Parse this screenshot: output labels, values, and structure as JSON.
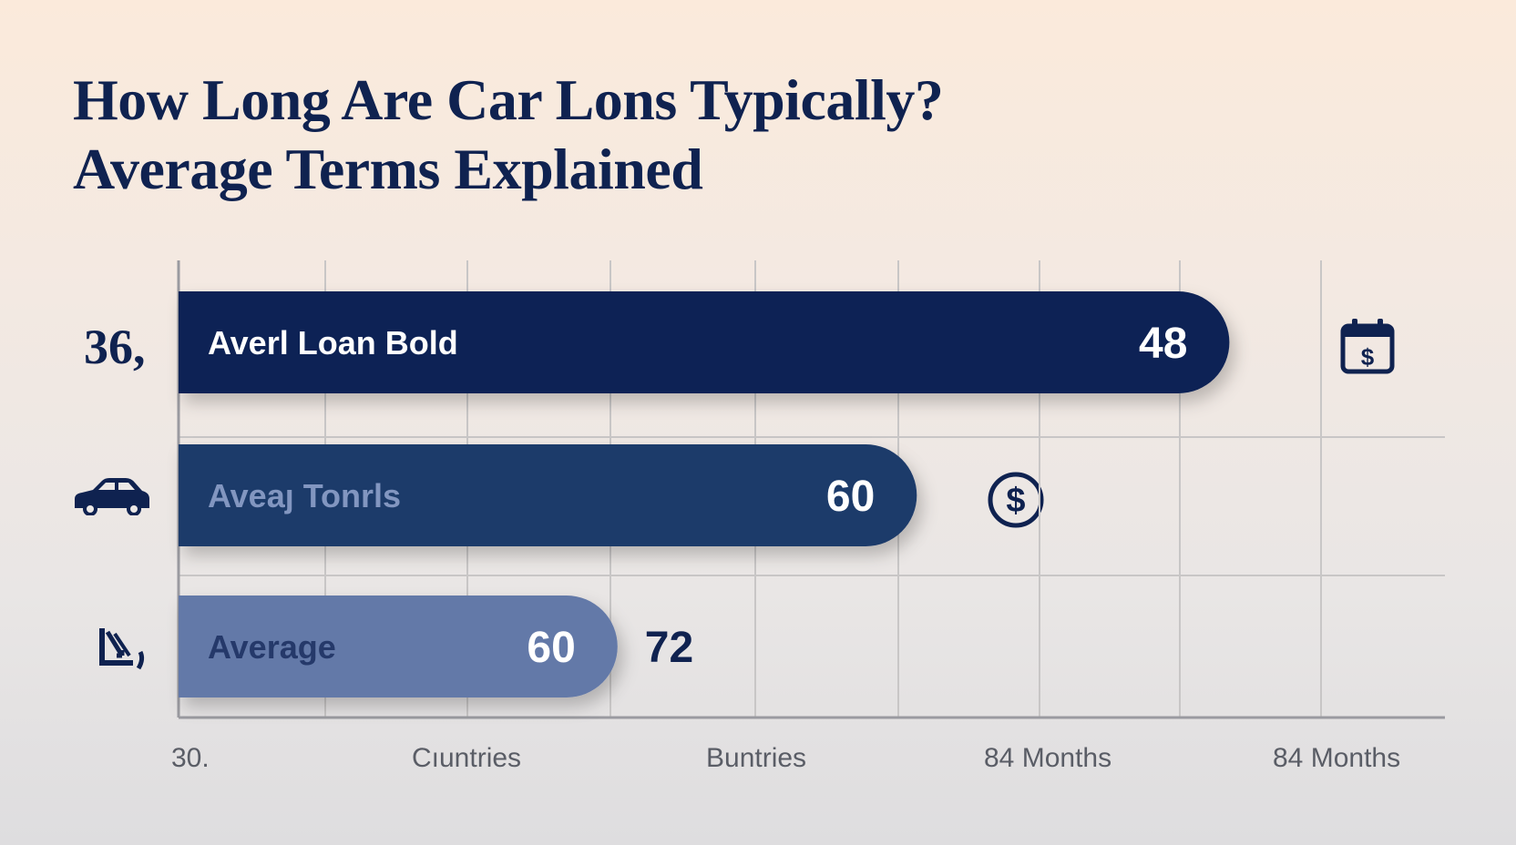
{
  "title_lines": [
    "How Long Are Car Lons Typically?",
    "Average Terms Explained"
  ],
  "row_labels": [
    "36,"
  ],
  "colors": {
    "title": "#0f2250",
    "grid": "#c8c6c6",
    "axis": "#9a9aa0",
    "tick_label": "#5a5d66",
    "bar1": "#0b2154",
    "bar2": "#1f3a6a",
    "bar3": "#6479a8",
    "icon": "#0f2250"
  },
  "icons": [
    "car-icon",
    "chart-down-icon",
    "calendar-dollar-icon",
    "dollar-circle-icon"
  ],
  "chart_data": {
    "type": "bar",
    "orientation": "horizontal",
    "title": "How Long Are Car Lons Typically? Average Terms Explained",
    "xlabel": "",
    "ylabel": "",
    "x_tick_labels": [
      "30.",
      "Cıuntries",
      "Buntries",
      "84 Months",
      "84 Months"
    ],
    "grid": true,
    "legend": "none",
    "bars": [
      {
        "label": "Averl Loan Bold",
        "value_label": "48",
        "length_fraction": 0.79,
        "color": "#0b2154",
        "label_color": "#ffffff",
        "value_color": "#ffffff"
      },
      {
        "label": "Aveaȷ Tonrls",
        "value_label": "60",
        "length_fraction": 0.555,
        "color": "#1f3a6a",
        "label_color": "#8296c0",
        "value_color": "#ffffff"
      },
      {
        "label": "Average",
        "value_label": "60",
        "outside_label": "72",
        "length_fraction": 0.33,
        "color": "#6479a8",
        "label_color": "#25396a",
        "value_color": "#ffffff"
      }
    ]
  }
}
